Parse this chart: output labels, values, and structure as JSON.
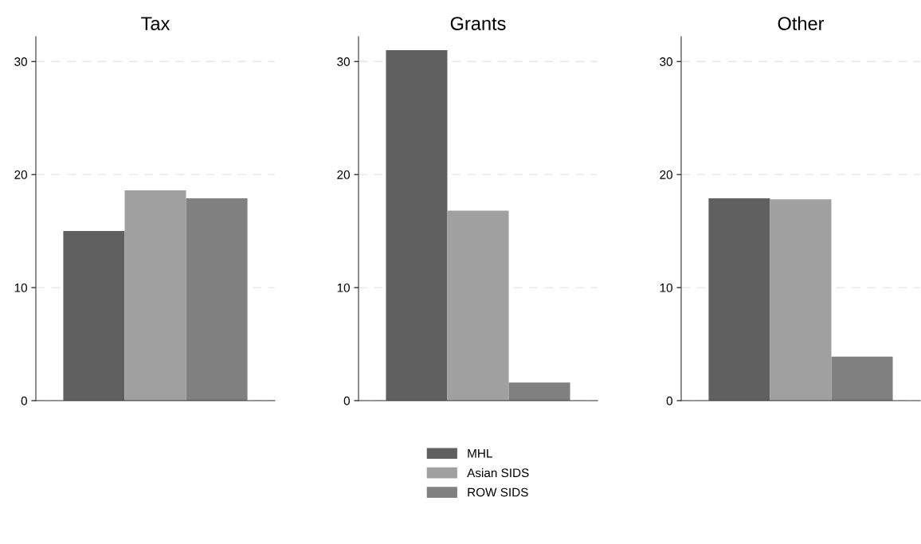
{
  "chart_data": [
    {
      "type": "bar",
      "title": "Tax",
      "categories": [
        null
      ],
      "series": [
        {
          "color": "#606060",
          "values": [
            15.0
          ]
        },
        {
          "color": "#a0a0a0",
          "values": [
            18.6
          ]
        },
        {
          "color": "#808080",
          "values": [
            17.9
          ]
        }
      ],
      "ylim": [
        0,
        32.2
      ],
      "yticks": [
        0,
        10,
        20,
        30
      ],
      "grid": "y",
      "legend": false
    },
    {
      "type": "bar",
      "title": "Grants",
      "categories": [
        null
      ],
      "series": [
        {
          "name": "MHL",
          "color": "#606060",
          "values": [
            31.0
          ]
        },
        {
          "name": "Asian SIDS",
          "color": "#a0a0a0",
          "values": [
            16.8
          ]
        },
        {
          "name": "ROW SIDS",
          "color": "#808080",
          "values": [
            1.6
          ]
        }
      ],
      "ylim": [
        0,
        32.2
      ],
      "yticks": [
        0,
        10,
        20,
        30
      ],
      "grid": "y",
      "legend": "bottom"
    },
    {
      "type": "bar",
      "title": "Other",
      "categories": [
        null
      ],
      "series": [
        {
          "color": "#606060",
          "values": [
            17.9
          ]
        },
        {
          "color": "#a0a0a0",
          "values": [
            17.8
          ]
        },
        {
          "color": "#808080",
          "values": [
            3.9
          ]
        }
      ],
      "ylim": [
        0,
        32.2
      ],
      "yticks": [
        0,
        10,
        20,
        30
      ],
      "grid": "y",
      "legend": false
    }
  ]
}
